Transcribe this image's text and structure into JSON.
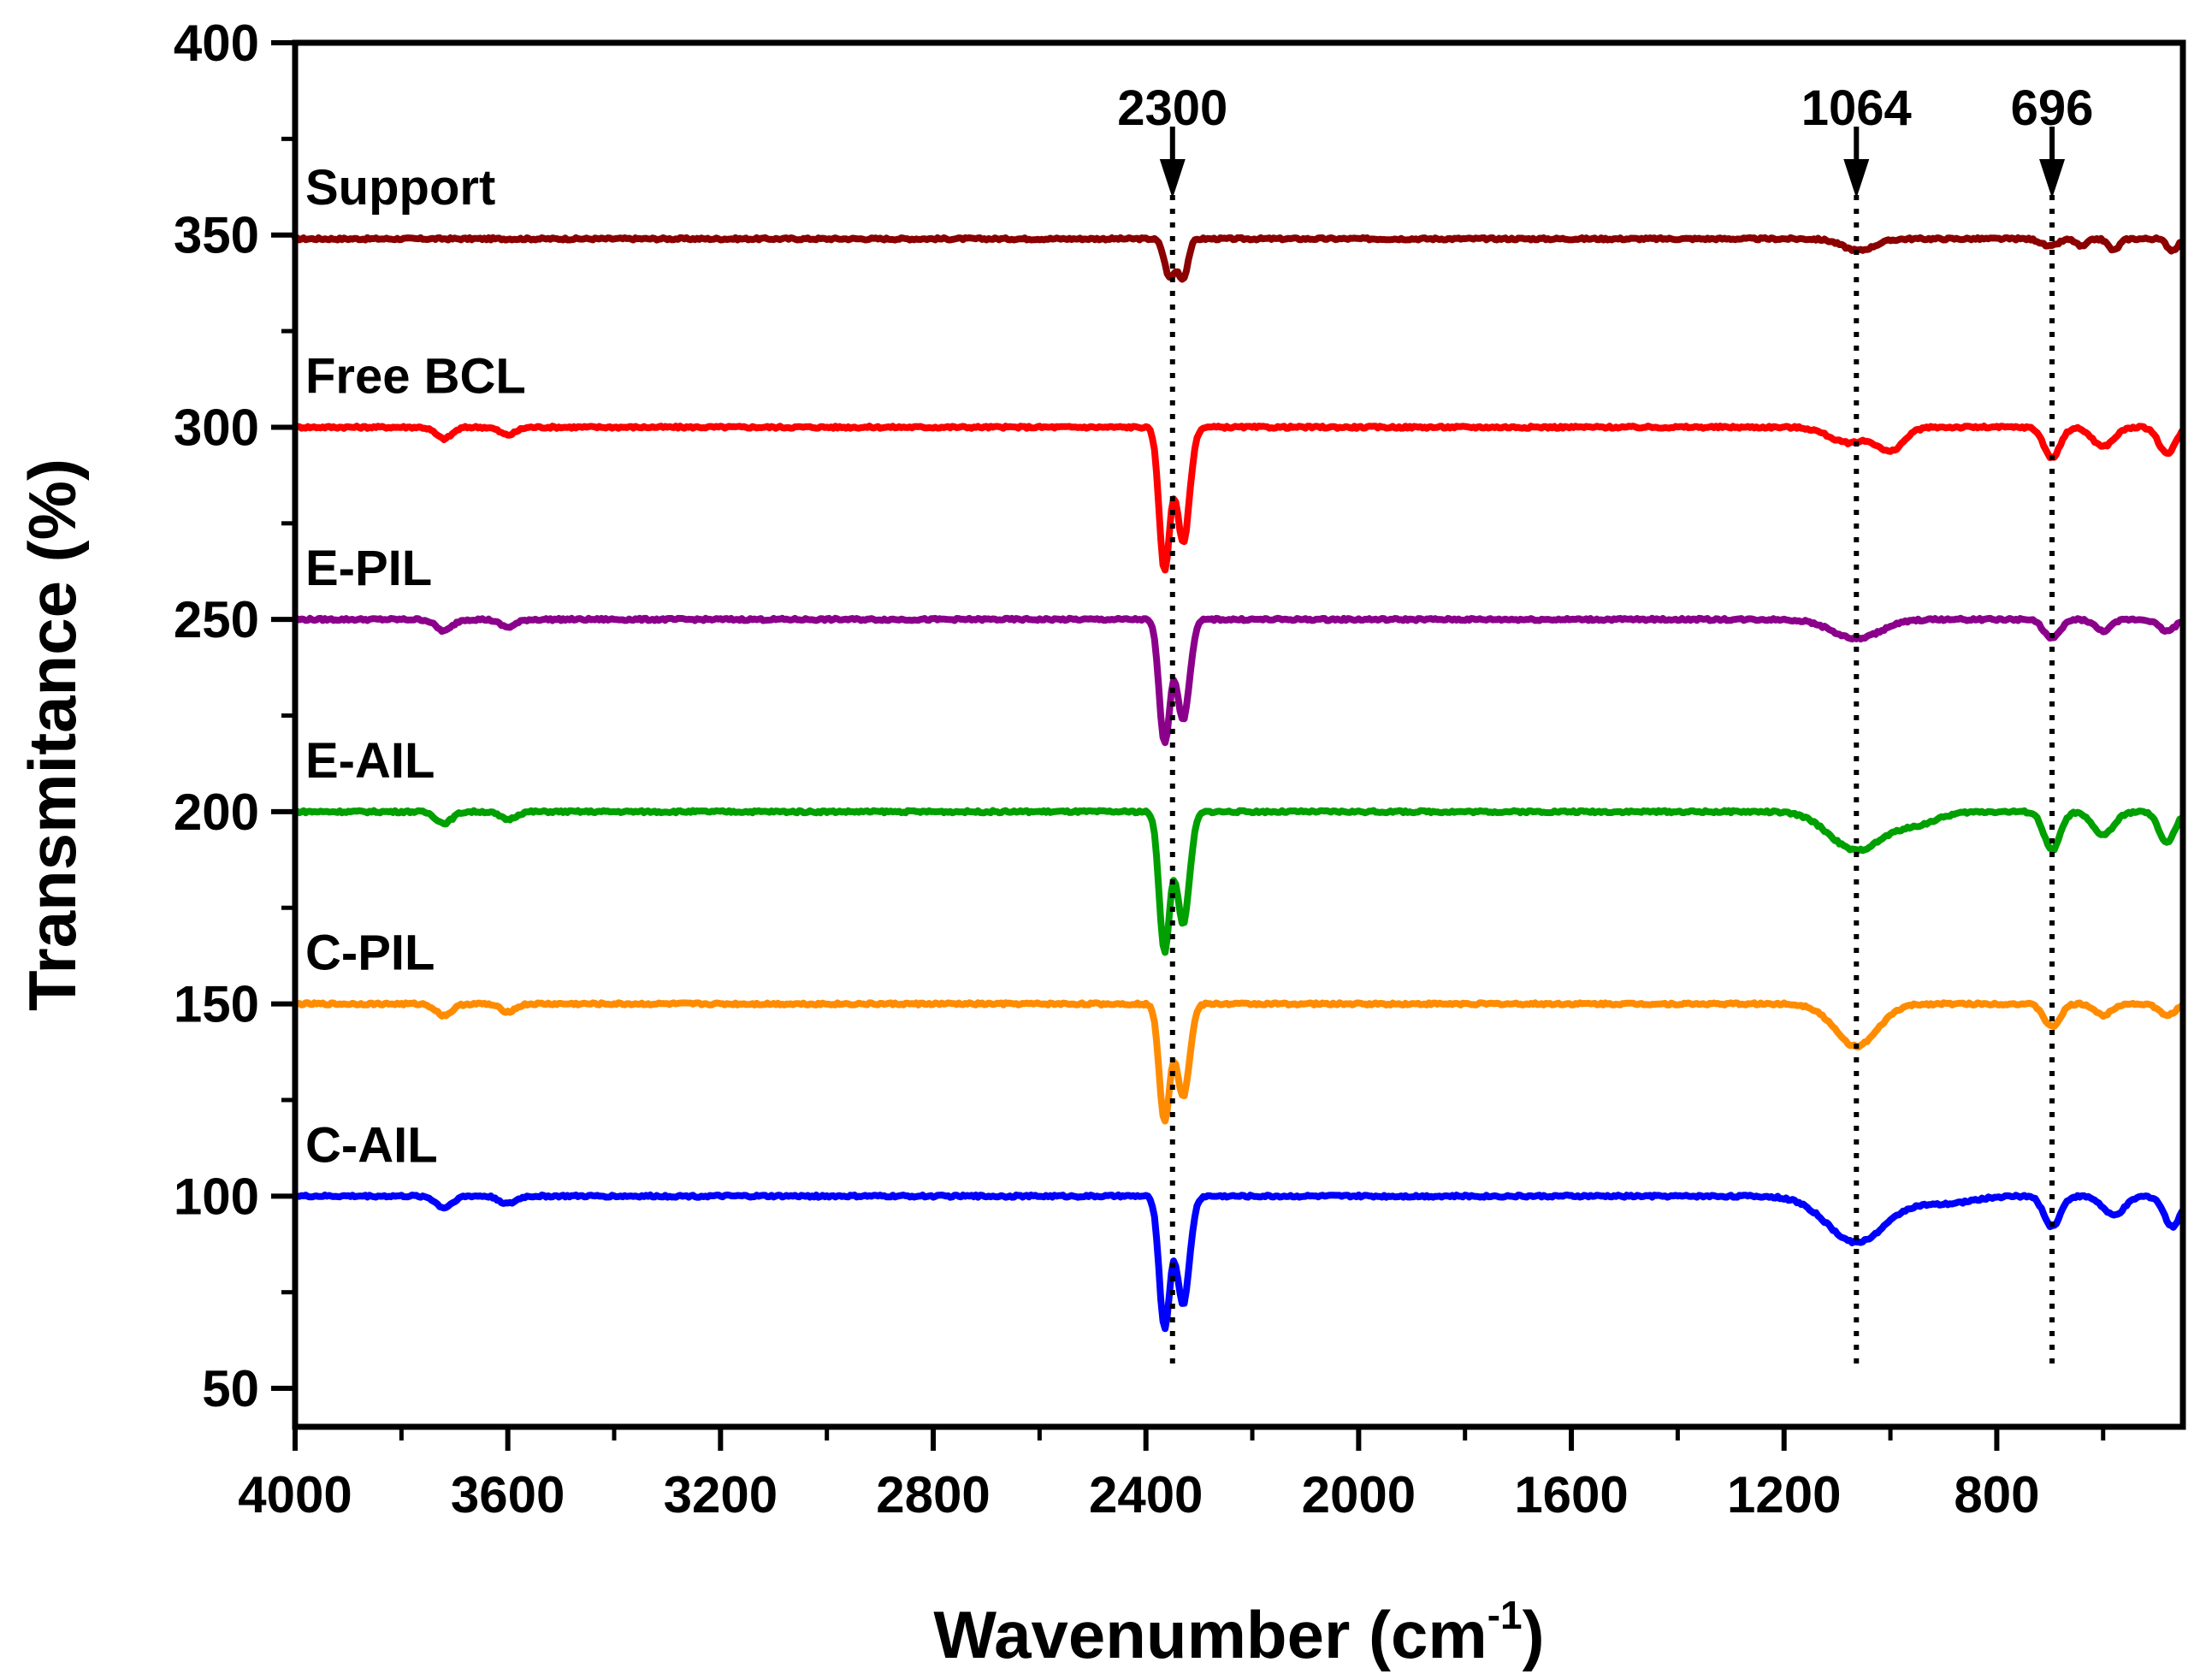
{
  "chart_data": {
    "type": "line",
    "title": "",
    "xlabel": "Wavenumber (cm",
    "xlabel_sup": "-1",
    "xlabel_tail": ")",
    "ylabel": "Transmitance (%)",
    "xlim": [
      4000,
      450
    ],
    "ylim": [
      40,
      400
    ],
    "xticks": [
      4000,
      3600,
      3200,
      2800,
      2400,
      2000,
      1600,
      1200,
      800
    ],
    "yticks": [
      50,
      100,
      150,
      200,
      250,
      300,
      350,
      400
    ],
    "grid": false,
    "legend": "inline labels above each trace",
    "annotations": [
      {
        "label": "2300",
        "x": 2350
      },
      {
        "label": "1064",
        "x": 1064
      },
      {
        "label": "696",
        "x": 696
      }
    ],
    "series": [
      {
        "name": "Support",
        "color": "#8b0000",
        "baseline": 349,
        "dips": [
          [
            2355,
            10,
            10
          ],
          [
            2330,
            10,
            9
          ],
          [
            1060,
            3,
            30
          ],
          [
            700,
            2,
            15
          ],
          [
            640,
            2,
            10
          ],
          [
            580,
            3,
            10
          ],
          [
            470,
            3,
            10
          ]
        ]
      },
      {
        "name": "Free BCL",
        "color": "#ff0000",
        "baseline": 300,
        "dips": [
          [
            3720,
            3,
            15
          ],
          [
            3600,
            2,
            15
          ],
          [
            2365,
            37,
            10
          ],
          [
            2330,
            30,
            12
          ],
          [
            1080,
            4,
            35
          ],
          [
            1000,
            6,
            25
          ],
          [
            696,
            8,
            15
          ],
          [
            600,
            5,
            20
          ],
          [
            480,
            7,
            15
          ]
        ]
      },
      {
        "name": "E-PIL",
        "color": "#8b008b",
        "baseline": 250,
        "dips": [
          [
            3720,
            3,
            15
          ],
          [
            3600,
            2,
            15
          ],
          [
            2365,
            32,
            10
          ],
          [
            2330,
            26,
            12
          ],
          [
            1064,
            5,
            45
          ],
          [
            696,
            5,
            15
          ],
          [
            600,
            3,
            15
          ],
          [
            480,
            3,
            15
          ]
        ]
      },
      {
        "name": "E-AIL",
        "color": "#00a000",
        "baseline": 200,
        "dips": [
          [
            3720,
            3,
            15
          ],
          [
            3600,
            2,
            15
          ],
          [
            2365,
            36,
            10
          ],
          [
            2330,
            29,
            12
          ],
          [
            1064,
            10,
            50
          ],
          [
            950,
            3,
            40
          ],
          [
            696,
            10,
            15
          ],
          [
            600,
            6,
            20
          ],
          [
            480,
            8,
            15
          ]
        ]
      },
      {
        "name": "C-PIL",
        "color": "#ff8c00",
        "baseline": 150,
        "dips": [
          [
            3720,
            3,
            15
          ],
          [
            3600,
            2,
            15
          ],
          [
            2365,
            30,
            10
          ],
          [
            2330,
            24,
            12
          ],
          [
            1064,
            11,
            40
          ],
          [
            696,
            6,
            15
          ],
          [
            600,
            3,
            15
          ],
          [
            480,
            3,
            15
          ]
        ]
      },
      {
        "name": "C-AIL",
        "color": "#0000ff",
        "baseline": 100,
        "dips": [
          [
            3720,
            3,
            15
          ],
          [
            3600,
            2,
            15
          ],
          [
            2365,
            34,
            10
          ],
          [
            2330,
            28,
            12
          ],
          [
            1064,
            12,
            55
          ],
          [
            900,
            2,
            50
          ],
          [
            696,
            8,
            15
          ],
          [
            580,
            5,
            20
          ],
          [
            470,
            8,
            15
          ]
        ]
      }
    ]
  }
}
